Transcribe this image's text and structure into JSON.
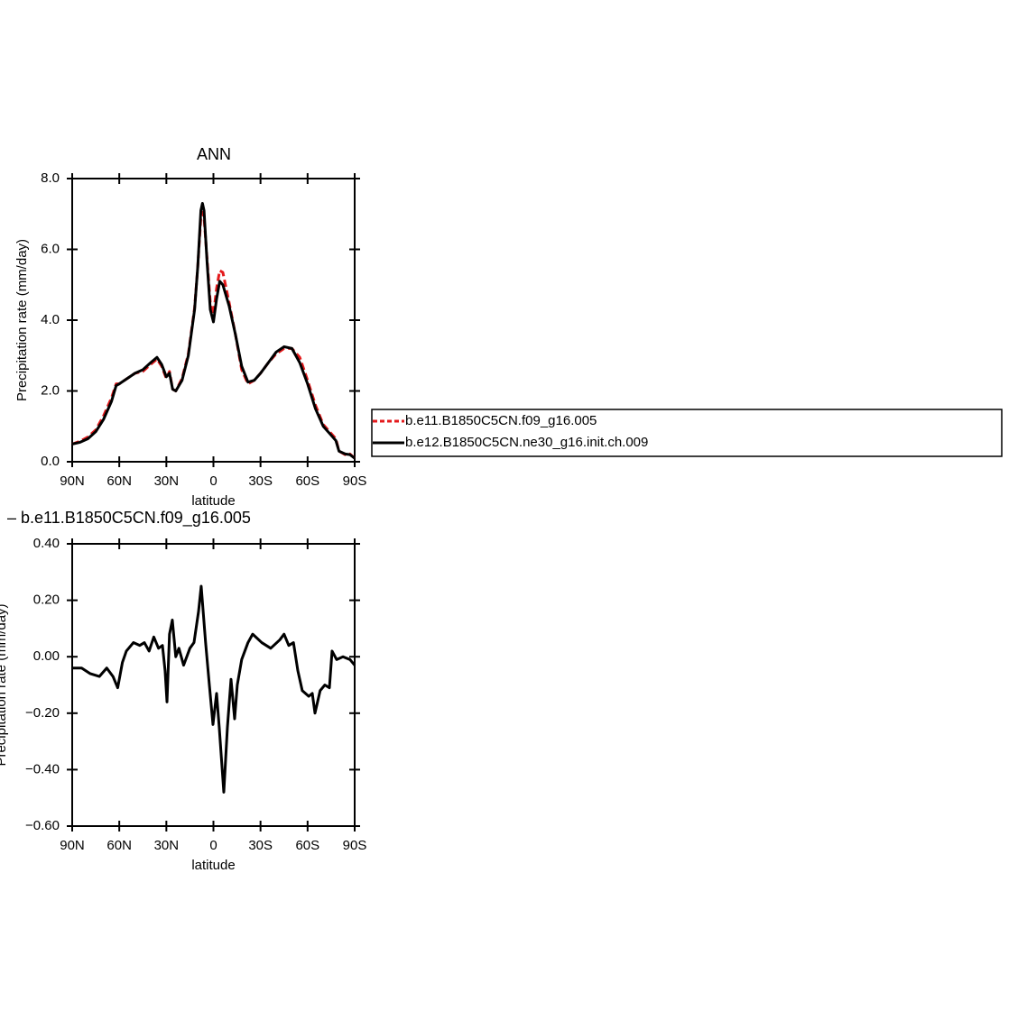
{
  "chart_data": [
    {
      "type": "line",
      "title": "ANN",
      "xlabel": "latitude",
      "ylabel": "Precipitation rate (mm/day)",
      "x": [
        90,
        85,
        80,
        75,
        70,
        65,
        62,
        60,
        55,
        50,
        45,
        40,
        36,
        33,
        30,
        28,
        26,
        24,
        20,
        16,
        12,
        10,
        8,
        7,
        6,
        4,
        2,
        0,
        -2,
        -4,
        -6,
        -10,
        -14,
        -18,
        -22,
        -26,
        -30,
        -35,
        -40,
        -45,
        -50,
        -55,
        -60,
        -65,
        -70,
        -75,
        -78,
        -80,
        -84,
        -87,
        -90
      ],
      "series": [
        {
          "name": "b.e11.B1850C5CN.f09_g16.005",
          "color": "#e41a1c",
          "line_style": "dashed",
          "values": [
            0.5,
            0.58,
            0.7,
            0.9,
            1.3,
            1.8,
            2.2,
            2.2,
            2.35,
            2.5,
            2.55,
            2.75,
            2.9,
            2.7,
            2.35,
            2.55,
            2.05,
            2.0,
            2.35,
            3.05,
            4.35,
            5.5,
            6.9,
            7.05,
            6.9,
            5.7,
            4.5,
            4.15,
            4.9,
            5.4,
            5.35,
            4.5,
            3.6,
            2.6,
            2.2,
            2.3,
            2.5,
            2.8,
            3.05,
            3.2,
            3.2,
            2.95,
            2.3,
            1.6,
            1.05,
            0.8,
            0.65,
            0.3,
            0.2,
            0.22,
            0.1
          ]
        },
        {
          "name": "b.e12.B1850C5CN.ne30_g16.init.ch.009",
          "color": "#000000",
          "line_style": "solid",
          "values": [
            0.5,
            0.55,
            0.65,
            0.85,
            1.2,
            1.7,
            2.15,
            2.2,
            2.35,
            2.5,
            2.6,
            2.8,
            2.95,
            2.75,
            2.4,
            2.5,
            2.05,
            2.0,
            2.3,
            3.0,
            4.3,
            5.5,
            7.1,
            7.3,
            7.1,
            5.6,
            4.3,
            3.95,
            4.6,
            5.1,
            5.0,
            4.4,
            3.6,
            2.7,
            2.25,
            2.3,
            2.5,
            2.8,
            3.1,
            3.25,
            3.2,
            2.8,
            2.2,
            1.5,
            1.0,
            0.75,
            0.6,
            0.3,
            0.22,
            0.2,
            0.1
          ]
        }
      ],
      "xlim": [
        90,
        -90
      ],
      "xticks": [
        {
          "value": 90,
          "label": "90N"
        },
        {
          "value": 60,
          "label": "60N"
        },
        {
          "value": 30,
          "label": "30N"
        },
        0,
        {
          "value": -30,
          "label": "30S"
        },
        {
          "value": -60,
          "label": "60S"
        },
        {
          "value": -90,
          "label": "90S"
        }
      ],
      "ylim": [
        0,
        8
      ],
      "yticks": [
        {
          "value": 0,
          "label": "0.0"
        },
        {
          "value": 2,
          "label": "2.0"
        },
        {
          "value": 4,
          "label": "4.0"
        },
        {
          "value": 6,
          "label": "6.0"
        },
        {
          "value": 8,
          "label": "8.0"
        }
      ],
      "legend": "outside-right"
    },
    {
      "type": "line",
      "title": "–  b.e11.B1850C5CN.f09_g16.005",
      "xlabel": "latitude",
      "ylabel": "Precipitation rate (mm/day)",
      "color": "#000000",
      "x": [
        90,
        84,
        78.5,
        72.7,
        68,
        64,
        61,
        58,
        55.5,
        51,
        47,
        44,
        41,
        38,
        35,
        32.5,
        30.8,
        29.6,
        28,
        26.2,
        24,
        22,
        19,
        15,
        12.4,
        9.5,
        7.8,
        5,
        2.6,
        0.3,
        -2,
        -3.7,
        -6.6,
        -8.9,
        -11.2,
        -13.5,
        -15.2,
        -18,
        -22,
        -25,
        -30.8,
        -36.5,
        -42.3,
        -45,
        -48,
        -51,
        -53.8,
        -56.6,
        -60.7,
        -63,
        -64.7,
        -68,
        -71,
        -73.9,
        -75.6,
        -78.5,
        -82.5,
        -87,
        -90
      ],
      "values": [
        -0.04,
        -0.04,
        -0.06,
        -0.07,
        -0.04,
        -0.07,
        -0.11,
        -0.02,
        0.02,
        0.05,
        0.04,
        0.05,
        0.02,
        0.07,
        0.03,
        0.04,
        -0.05,
        -0.16,
        0.08,
        0.13,
        0.0,
        0.03,
        -0.03,
        0.03,
        0.05,
        0.16,
        0.25,
        0.05,
        -0.1,
        -0.24,
        -0.13,
        -0.25,
        -0.48,
        -0.25,
        -0.08,
        -0.22,
        -0.1,
        -0.01,
        0.05,
        0.08,
        0.05,
        0.03,
        0.06,
        0.08,
        0.04,
        0.05,
        -0.05,
        -0.12,
        -0.14,
        -0.13,
        -0.2,
        -0.12,
        -0.1,
        -0.11,
        0.02,
        -0.01,
        0.0,
        -0.01,
        -0.03
      ],
      "xlim": [
        90,
        -90
      ],
      "xticks": [
        {
          "value": 90,
          "label": "90N"
        },
        {
          "value": 60,
          "label": "60N"
        },
        {
          "value": 30,
          "label": "30N"
        },
        0,
        {
          "value": -30,
          "label": "30S"
        },
        {
          "value": -60,
          "label": "60S"
        },
        {
          "value": -90,
          "label": "90S"
        }
      ],
      "ylim": [
        -0.6,
        0.4
      ],
      "yticks": [
        {
          "value": -0.6,
          "label": "−0.60"
        },
        {
          "value": -0.4,
          "label": "−0.40"
        },
        {
          "value": -0.2,
          "label": "−0.20"
        },
        {
          "value": 0,
          "label": "0.00"
        },
        {
          "value": 0.2,
          "label": "0.20"
        },
        {
          "value": 0.4,
          "label": "0.40"
        }
      ]
    }
  ]
}
